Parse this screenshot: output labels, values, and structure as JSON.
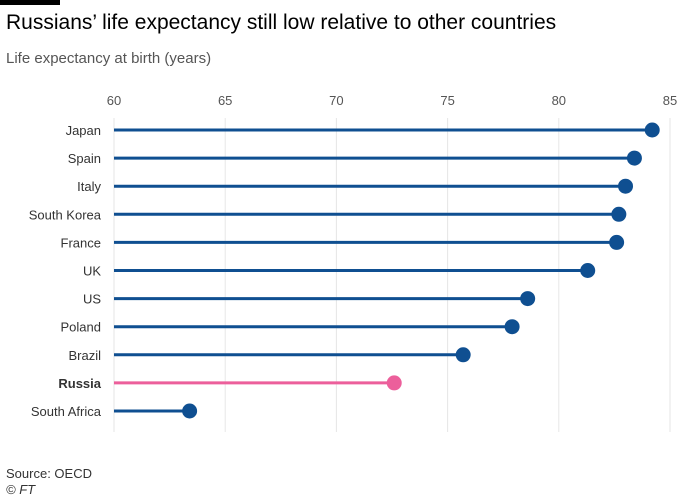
{
  "chart_data": {
    "type": "lollipop",
    "title": "Russians’ life expectancy still low relative to other countries",
    "subtitle": "Life expectancy at birth (years)",
    "xlabel": "",
    "ylabel": "",
    "xlim": [
      60,
      85
    ],
    "ticks": [
      60,
      65,
      70,
      75,
      80,
      85
    ],
    "grid": true,
    "categories": [
      "Japan",
      "Spain",
      "Italy",
      "South Korea",
      "France",
      "UK",
      "US",
      "Poland",
      "Brazil",
      "Russia",
      "South Africa"
    ],
    "values": [
      84.2,
      83.4,
      83.0,
      82.7,
      82.6,
      81.3,
      78.6,
      77.9,
      75.7,
      72.6,
      63.4
    ],
    "highlight": "Russia",
    "colors": {
      "default": "#0f4f91",
      "highlight": "#ec5f9b",
      "grid": "#e6e6e6",
      "tick_text": "#555555",
      "label_text": "#333333"
    }
  },
  "footer": {
    "source": "Source: OECD",
    "credit": "© FT"
  }
}
